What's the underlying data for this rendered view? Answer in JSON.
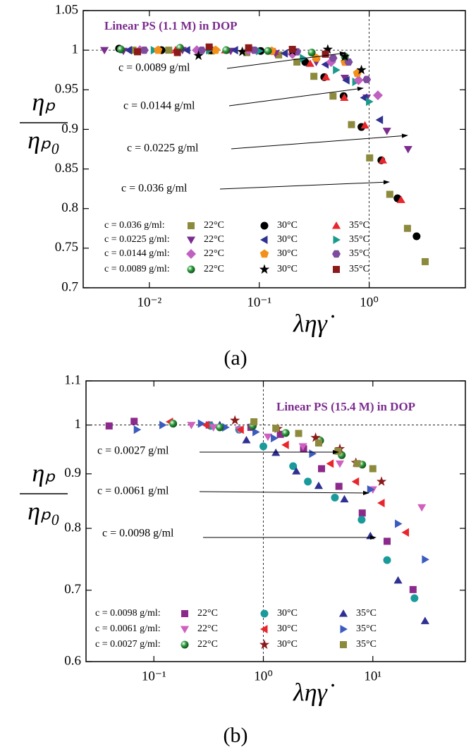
{
  "chart_data": [
    {
      "type": "scatter",
      "title": "Linear PS (1.1 M) in DOP",
      "caption": "(a)",
      "xlabel": "ληγ̇",
      "ylabel_top": "ηₚ",
      "ylabel_bottom": "ηₚ₀",
      "xscale": "log",
      "yscale": "linear",
      "xlim": [
        0.0025,
        7.5
      ],
      "ylim": [
        0.7,
        1.05
      ],
      "xticks": [
        {
          "value": 0.01,
          "label": "10⁻²"
        },
        {
          "value": 0.1,
          "label": "10⁻¹"
        },
        {
          "value": 1,
          "label": "10⁰"
        }
      ],
      "yticks": [
        0.7,
        0.75,
        0.8,
        0.85,
        0.9,
        0.95,
        1,
        1.05
      ],
      "hline": 1,
      "vline": 1,
      "annotations": [
        "c = 0.0089 g/ml",
        "c = 0.0144 g/ml",
        "c = 0.0225 g/ml",
        "c = 0.036 g/ml"
      ],
      "groups": [
        {
          "label": "c = 0.036 g/ml:",
          "series": [
            {
              "name": "22°C",
              "color": "#8c8a3c",
              "marker": "square",
              "x": [
                0.0071,
                0.015,
                0.0365,
                0.077,
                0.15,
                0.22,
                0.314,
                0.469,
                0.69,
                1.01,
                1.54,
                2.23,
                3.23
              ],
              "values": [
                1.0,
                1.0,
                0.999,
                0.997,
                0.994,
                0.985,
                0.967,
                0.942,
                0.906,
                0.864,
                0.818,
                0.775,
                0.733
              ]
            },
            {
              "name": "30°C",
              "color": "#000000",
              "marker": "circle",
              "x": [
                0.0053,
                0.0129,
                0.0365,
                0.103,
                0.262,
                0.39,
                0.585,
                0.85,
                1.29,
                1.81,
                2.7
              ],
              "values": [
                1.002,
                1.0,
                1.0,
                0.999,
                0.985,
                0.966,
                0.942,
                0.903,
                0.861,
                0.813,
                0.765
              ]
            },
            {
              "name": "35°C",
              "color": "#e8262c",
              "marker": "triangle-up",
              "x": [
                0.0173,
                0.049,
                0.139,
                0.29,
                0.404,
                0.594,
                0.915,
                1.33,
                1.95
              ],
              "values": [
                1.0,
                1.0,
                0.998,
                0.983,
                0.966,
                0.94,
                0.905,
                0.861,
                0.811
              ]
            }
          ]
        },
        {
          "label": "c = 0.0225 g/ml:",
          "series": [
            {
              "name": "22°C",
              "color": "#7b2d8e",
              "marker": "triangle-down",
              "x": [
                0.0039,
                0.0058,
                0.02,
                0.055,
                0.14,
                0.33,
                0.6,
                0.95,
                1.45,
                2.26
              ],
              "values": [
                1.0,
                0.999,
                1.0,
                0.999,
                0.996,
                0.985,
                0.965,
                0.94,
                0.898,
                0.875
              ]
            },
            {
              "name": "30°C",
              "color": "#2e3192",
              "marker": "triangle-left",
              "x": [
                0.0065,
                0.022,
                0.06,
                0.17,
                0.4,
                0.62,
                0.9,
                1.25
              ],
              "values": [
                1.0,
                1.0,
                1.0,
                0.996,
                0.982,
                0.962,
                0.94,
                0.912
              ]
            },
            {
              "name": "35°C",
              "color": "#1a9a8a",
              "marker": "triangle-right",
              "x": [
                0.011,
                0.035,
                0.1,
                0.25,
                0.5,
                0.75,
                1.0
              ],
              "values": [
                1.0,
                1.0,
                0.999,
                0.99,
                0.975,
                0.96,
                0.935
              ]
            }
          ]
        },
        {
          "label": "c = 0.0144 g/ml:",
          "series": [
            {
              "name": "22°C",
              "color": "#c060c0",
              "marker": "diamond",
              "x": [
                0.0082,
                0.027,
                0.08,
                0.2,
                0.45,
                0.8,
                1.2
              ],
              "values": [
                1.0,
                1.0,
                1.0,
                0.995,
                0.985,
                0.962,
                0.943
              ]
            },
            {
              "name": "30°C",
              "color": "#f39019",
              "marker": "pentagon",
              "x": [
                0.012,
                0.04,
                0.13,
                0.33,
                0.6,
                0.78
              ],
              "values": [
                1.0,
                1.0,
                0.999,
                0.99,
                0.985,
                0.971
              ]
            },
            {
              "name": "35°C",
              "color": "#7d4c9e",
              "marker": "hexagon",
              "x": [
                0.009,
                0.03,
                0.09,
                0.22,
                0.47,
                0.65,
                0.95
              ],
              "values": [
                1.0,
                1.0,
                1.0,
                0.998,
                0.99,
                0.985,
                0.963
              ]
            }
          ]
        },
        {
          "label": "c = 0.0089 g/ml:",
          "series": [
            {
              "name": "22°C",
              "color": "#2e9e3e",
              "marker": "sphere",
              "x": [
                0.0055,
                0.019,
                0.05,
                0.12,
                0.3,
                0.6
              ],
              "values": [
                1.001,
                1.003,
                1.0,
                0.999,
                0.997,
                0.992
              ]
            },
            {
              "name": "30°C",
              "color": "#000000",
              "marker": "star",
              "x": [
                0.028,
                0.07,
                0.2,
                0.42,
                0.6,
                0.85
              ],
              "values": [
                0.993,
                0.998,
                0.999,
                1.001,
                0.992,
                0.975
              ]
            },
            {
              "name": "35°C",
              "color": "#8b1a1a",
              "marker": "square",
              "x": [
                0.0078,
                0.018,
                0.035,
                0.08,
                0.2,
                0.4
              ],
              "values": [
                0.998,
                0.997,
                1.004,
                1.003,
                1.001,
                0.995
              ]
            }
          ]
        }
      ]
    },
    {
      "type": "scatter",
      "title": "Linear PS (15.4 M) in DOP",
      "caption": "(b)",
      "xlabel": "ληγ̇",
      "ylabel_top": "ηₚ",
      "ylabel_bottom": "ηₚ₀",
      "xscale": "log",
      "yscale": "log",
      "xlim": [
        0.024,
        70
      ],
      "ylim": [
        0.6,
        1.1
      ],
      "xticks": [
        {
          "value": 0.1,
          "label": "10⁻¹"
        },
        {
          "value": 1,
          "label": "10⁰"
        },
        {
          "value": 10,
          "label": "10¹"
        }
      ],
      "yticks": [
        0.6,
        0.7,
        0.8,
        0.9,
        1,
        1.1
      ],
      "hline": 1,
      "vline": 1,
      "annotations": [
        "c = 0.0027 g/ml",
        "c = 0.0061 g/ml",
        "c = 0.0098 g/ml"
      ],
      "groups": [
        {
          "label": "c = 0.0098 g/ml:",
          "series": [
            {
              "name": "22°C",
              "color": "#8b2a8b",
              "marker": "square",
              "x": [
                0.039,
                0.066,
                0.32,
                0.77,
                1.43,
                2.33,
                3.4,
                4.9,
                8.0,
                13.5,
                23.3
              ],
              "values": [
                0.998,
                1.008,
                1.0,
                0.995,
                0.98,
                0.95,
                0.91,
                0.876,
                0.827,
                0.778,
                0.701
              ]
            },
            {
              "name": "30°C",
              "color": "#1a9a9a",
              "marker": "circle",
              "x": [
                0.15,
                0.33,
                0.6,
                1.0,
                1.87,
                2.55,
                4.5,
                7.9,
                13.5,
                24
              ],
              "values": [
                1.003,
                0.998,
                0.99,
                0.955,
                0.915,
                0.885,
                0.855,
                0.815,
                0.747,
                0.688
              ]
            },
            {
              "name": "35°C",
              "color": "#2e3192",
              "marker": "triangle-up",
              "x": [
                0.4,
                0.7,
                1.3,
                2.0,
                3.2,
                5.5,
                9.5,
                17,
                30
              ],
              "values": [
                1.0,
                0.968,
                0.942,
                0.905,
                0.877,
                0.852,
                0.787,
                0.715,
                0.655
              ]
            }
          ]
        },
        {
          "label": "c = 0.0061 g/ml:",
          "series": [
            {
              "name": "22°C",
              "color": "#d060c0",
              "marker": "triangle-down",
              "x": [
                0.22,
                0.35,
                0.6,
                1.1,
                2.3,
                5,
                10,
                28
              ],
              "values": [
                1.0,
                0.995,
                0.99,
                0.975,
                0.955,
                0.92,
                0.87,
                0.837
              ]
            },
            {
              "name": "30°C",
              "color": "#e8262c",
              "marker": "triangle-left",
              "x": [
                0.14,
                0.3,
                0.62,
                1.6,
                4.1,
                7,
                12,
                20
              ],
              "values": [
                1.007,
                1.0,
                0.99,
                0.958,
                0.92,
                0.885,
                0.845,
                0.793
              ]
            },
            {
              "name": "35°C",
              "color": "#3b5bbf",
              "marker": "triangle-right",
              "x": [
                0.07,
                0.12,
                0.27,
                0.45,
                0.85,
                1.25,
                2.8,
                9.5,
                17,
                30
              ],
              "values": [
                0.99,
                1.0,
                1.003,
                0.995,
                0.985,
                0.972,
                0.94,
                0.87,
                0.808,
                0.748
              ]
            }
          ]
        },
        {
          "label": "c = 0.0027 g/ml:",
          "series": [
            {
              "name": "22°C",
              "color": "#2e9e3e",
              "marker": "sphere",
              "x": [
                0.15,
                0.4,
                0.8,
                1.6,
                3.3,
                5.2,
                8
              ],
              "values": [
                1.003,
                0.995,
                0.998,
                0.983,
                0.967,
                0.937,
                0.918
              ]
            },
            {
              "name": "30°C",
              "color": "#8b1a1a",
              "marker": "star",
              "x": [
                0.55,
                1.35,
                3.0,
                5,
                7,
                12
              ],
              "values": [
                1.01,
                0.992,
                0.973,
                0.95,
                0.922,
                0.885
              ]
            },
            {
              "name": "35°C",
              "color": "#8c8a3c",
              "marker": "square",
              "x": [
                0.82,
                1.3,
                2.1,
                3.2,
                4.8,
                7.2,
                10
              ],
              "values": [
                1.007,
                0.993,
                0.982,
                0.962,
                0.945,
                0.92,
                0.91
              ]
            }
          ]
        }
      ]
    }
  ]
}
